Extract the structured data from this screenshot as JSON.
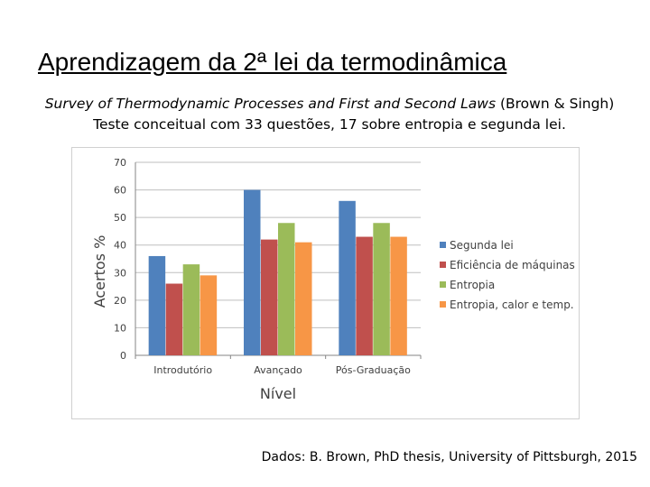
{
  "slide": {
    "title": "Aprendizagem da 2ª lei da termodinâmica",
    "subtitle_italic": "Survey of Thermodynamic Processes and First and Second Laws",
    "subtitle_authors": "(Brown & Singh)",
    "subtitle_line2": "Teste conceitual com 33 questões, 17 sobre entropia e segunda lei.",
    "source": "Dados: B. Brown, PhD thesis, University of Pittsburgh, 2015"
  },
  "chart_data": {
    "type": "bar",
    "title": "",
    "xlabel": "Nível",
    "ylabel": "Acertos %",
    "ylim": [
      0,
      70
    ],
    "yticks": [
      0,
      10,
      20,
      30,
      40,
      50,
      60,
      70
    ],
    "grid": true,
    "legend_position": "right",
    "categories": [
      "Introdutório",
      "Avançado",
      "Pós-Graduação"
    ],
    "series": [
      {
        "name": "Segunda lei",
        "color": "#4f81bd",
        "values": [
          36,
          60,
          56
        ]
      },
      {
        "name": "Eficiência de máquinas",
        "color": "#c0504d",
        "values": [
          26,
          42,
          43
        ]
      },
      {
        "name": "Entropia",
        "color": "#9bbb59",
        "values": [
          33,
          48,
          48
        ]
      },
      {
        "name": "Entropia, calor e temp.",
        "color": "#f79646",
        "values": [
          29,
          41,
          43
        ]
      }
    ]
  }
}
